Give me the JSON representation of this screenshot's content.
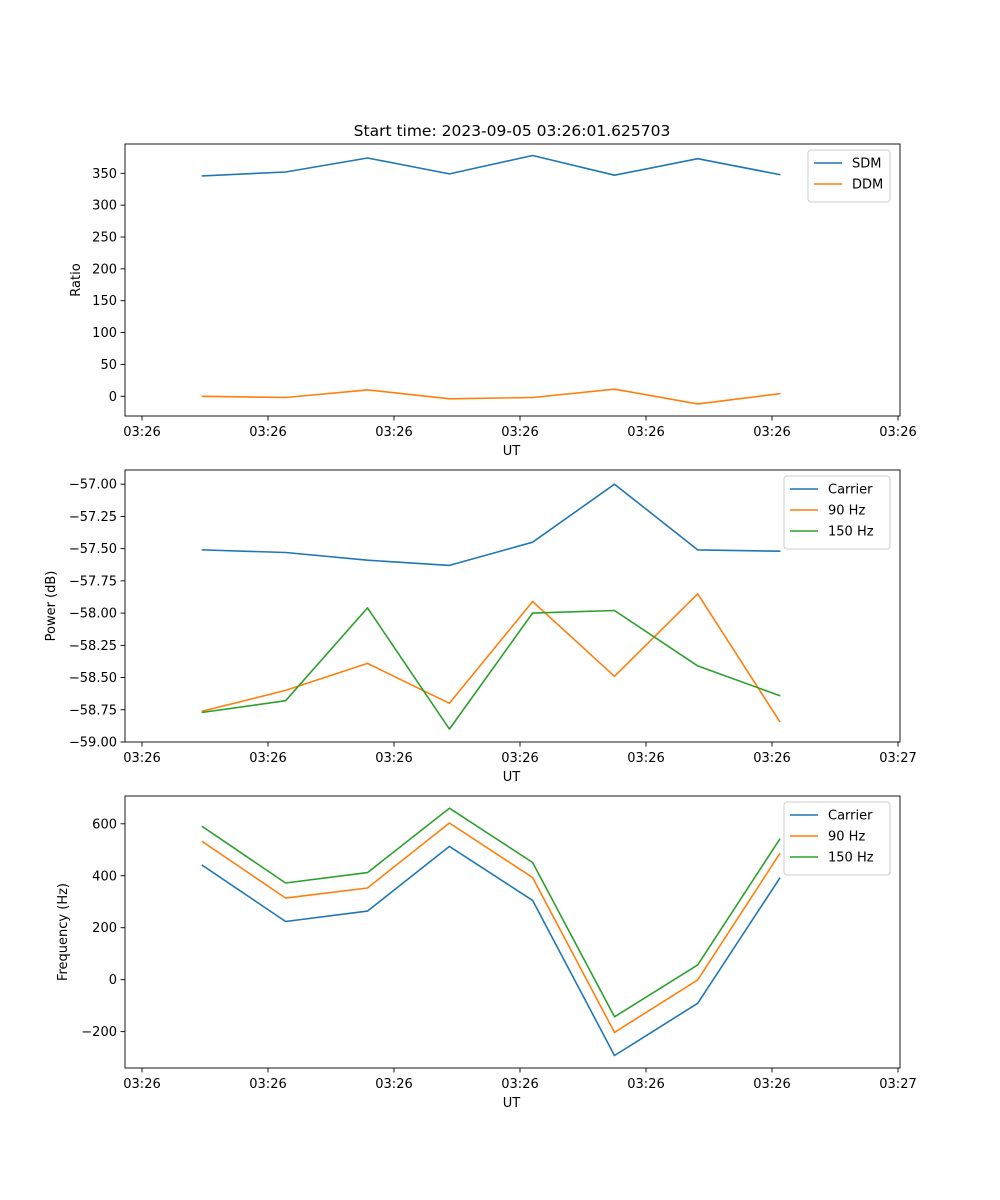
{
  "figure_title": "Start time: 2023-09-05 03:26:01.625703",
  "chart_data": [
    {
      "type": "line",
      "title": "Start time: 2023-09-05 03:26:01.625703",
      "xlabel": "UT",
      "ylabel": "Ratio",
      "xticks": [
        "03:26",
        "03:26",
        "03:26",
        "03:26",
        "03:26",
        "03:26",
        "03:26"
      ],
      "xlim": [
        0,
        6.0
      ],
      "xtick_positions": [
        0,
        1,
        2,
        3,
        4,
        5,
        6
      ],
      "ylim": [
        -31,
        396
      ],
      "yticks": [
        0,
        50,
        100,
        150,
        200,
        250,
        300,
        350
      ],
      "yticklabels": [
        "0",
        "50",
        "100",
        "150",
        "200",
        "250",
        "300",
        "350"
      ],
      "x": [
        0.48,
        1.14,
        1.79,
        2.44,
        3.1,
        3.75,
        4.41,
        5.06
      ],
      "legend_position": "upper-right",
      "series": [
        {
          "name": "SDM",
          "color": "#1f77b4",
          "values": [
            346,
            352,
            374,
            349,
            378,
            347,
            373,
            348
          ]
        },
        {
          "name": "DDM",
          "color": "#ff7f0e",
          "values": [
            0,
            -2,
            10,
            -4,
            -2,
            11,
            -12,
            4
          ]
        }
      ]
    },
    {
      "type": "line",
      "xlabel": "UT",
      "ylabel": "Power (dB)",
      "xticks": [
        "03:26",
        "03:26",
        "03:26",
        "03:26",
        "03:26",
        "03:26",
        "03:27"
      ],
      "xlim": [
        0,
        6.0
      ],
      "xtick_positions": [
        0,
        1,
        2,
        3,
        4,
        5,
        6
      ],
      "ylim": [
        -59.0,
        -56.89
      ],
      "yticks": [
        -59.0,
        -58.75,
        -58.5,
        -58.25,
        -58.0,
        -57.75,
        -57.5,
        -57.25,
        -57.0
      ],
      "yticklabels": [
        "−59.00",
        "−58.75",
        "−58.50",
        "−58.25",
        "−58.00",
        "−57.75",
        "−57.50",
        "−57.25",
        "−57.00"
      ],
      "x": [
        0.48,
        1.14,
        1.79,
        2.44,
        3.1,
        3.75,
        4.41,
        5.06
      ],
      "legend_position": "upper-right",
      "series": [
        {
          "name": "Carrier",
          "color": "#1f77b4",
          "values": [
            -57.51,
            -57.53,
            -57.59,
            -57.63,
            -57.45,
            -57.0,
            -57.51,
            -57.52
          ]
        },
        {
          "name": "90 Hz",
          "color": "#ff7f0e",
          "values": [
            -58.76,
            -58.6,
            -58.39,
            -58.7,
            -57.91,
            -58.49,
            -57.85,
            -58.84
          ]
        },
        {
          "name": "150 Hz",
          "color": "#2ca02c",
          "values": [
            -58.77,
            -58.68,
            -57.96,
            -58.9,
            -58.0,
            -57.98,
            -58.41,
            -58.64
          ]
        }
      ]
    },
    {
      "type": "line",
      "xlabel": "UT",
      "ylabel": "Frequency (Hz)",
      "xticks": [
        "03:26",
        "03:26",
        "03:26",
        "03:26",
        "03:26",
        "03:26",
        "03:27"
      ],
      "xlim": [
        0,
        6.0
      ],
      "xtick_positions": [
        0,
        1,
        2,
        3,
        4,
        5,
        6
      ],
      "ylim": [
        -340,
        707
      ],
      "yticks": [
        -200,
        0,
        200,
        400,
        600
      ],
      "yticklabels": [
        "−200",
        "0",
        "200",
        "400",
        "600"
      ],
      "x": [
        0.48,
        1.14,
        1.79,
        2.44,
        3.1,
        3.75,
        4.41,
        5.06
      ],
      "legend_position": "upper-right",
      "series": [
        {
          "name": "Carrier",
          "color": "#1f77b4",
          "values": [
            440,
            224,
            264,
            513,
            305,
            -292,
            -91,
            390
          ]
        },
        {
          "name": "90 Hz",
          "color": "#ff7f0e",
          "values": [
            531,
            314,
            353,
            603,
            393,
            -203,
            -1,
            484
          ]
        },
        {
          "name": "150 Hz",
          "color": "#2ca02c",
          "values": [
            589,
            372,
            412,
            660,
            451,
            -143,
            57,
            540
          ]
        }
      ]
    }
  ]
}
